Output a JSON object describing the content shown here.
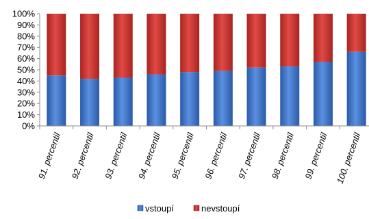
{
  "chart_data": {
    "type": "bar",
    "stacked": true,
    "percent_stacked": true,
    "categories": [
      "91. percentil",
      "92. percentil",
      "93. percentil",
      "94. percentil",
      "95. percentil",
      "96. percentil",
      "97. percentil",
      "98. percentil",
      "99. percentil",
      "100. percentil"
    ],
    "series": [
      {
        "name": "vstoupí",
        "color": "#3a6fc4",
        "values": [
          45,
          42,
          43,
          46,
          48,
          49,
          52,
          53,
          57,
          66
        ]
      },
      {
        "name": "nevstoupí",
        "color": "#c8322d",
        "values": [
          55,
          58,
          57,
          54,
          52,
          51,
          48,
          47,
          43,
          34
        ]
      }
    ],
    "y_ticks": [
      "0%",
      "10%",
      "20%",
      "30%",
      "40%",
      "50%",
      "60%",
      "70%",
      "80%",
      "90%",
      "100%"
    ],
    "ylim": [
      0,
      100
    ],
    "title": "",
    "xlabel": "",
    "ylabel": "",
    "grid": false,
    "legend_position": "bottom"
  }
}
